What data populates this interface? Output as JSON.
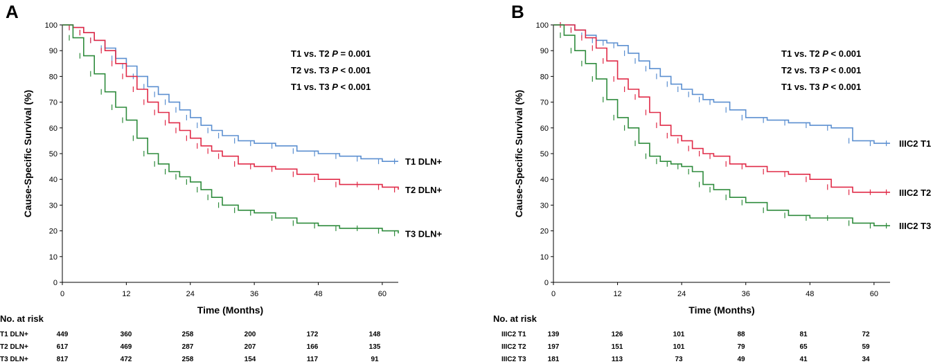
{
  "chart_data": [
    {
      "type": "line",
      "panel_label": "A",
      "xlabel": "Time (Months)",
      "ylabel": "Cause-Specific Survival (%)",
      "xlim": [
        0,
        63
      ],
      "ylim": [
        0,
        100
      ],
      "xticks": [
        0,
        12,
        24,
        36,
        48,
        60
      ],
      "yticks": [
        0,
        10,
        20,
        30,
        40,
        50,
        60,
        70,
        80,
        90,
        100
      ],
      "stats": [
        {
          "label": "T1 vs. T2",
          "p": "P",
          "value": "= 0.001"
        },
        {
          "label": "T2 vs. T3",
          "p": "P",
          "value": "< 0.001"
        },
        {
          "label": "T1 vs. T3",
          "p": "P",
          "value": "< 0.001"
        }
      ],
      "risk_title": "No. at risk",
      "risk_times": [
        0,
        12,
        24,
        36,
        48,
        60
      ],
      "series": [
        {
          "name": "T1 DLN+",
          "color": "#5b8fd0",
          "x": [
            0,
            2,
            4,
            6,
            8,
            10,
            12,
            14,
            16,
            18,
            20,
            22,
            24,
            26,
            28,
            30,
            33,
            36,
            40,
            44,
            48,
            52,
            56,
            60,
            63
          ],
          "y": [
            100,
            99,
            97,
            94,
            91,
            87,
            84,
            80,
            76,
            73,
            70,
            67,
            64,
            61,
            59,
            57,
            55,
            54,
            53,
            51,
            50,
            49,
            48,
            47,
            47
          ],
          "risk": [
            449,
            360,
            258,
            200,
            172,
            148
          ]
        },
        {
          "name": "T2 DLN+",
          "color": "#e02a47",
          "x": [
            0,
            2,
            4,
            6,
            8,
            10,
            12,
            14,
            16,
            18,
            20,
            22,
            24,
            26,
            28,
            30,
            33,
            36,
            40,
            44,
            48,
            52,
            56,
            60,
            63
          ],
          "y": [
            100,
            99,
            97,
            94,
            90,
            85,
            80,
            75,
            70,
            66,
            62,
            59,
            56,
            53,
            51,
            49,
            46,
            45,
            44,
            42,
            40,
            38,
            38,
            37,
            36
          ],
          "risk": [
            617,
            469,
            287,
            207,
            166,
            135
          ]
        },
        {
          "name": "T3 DLN+",
          "color": "#2e8b3c",
          "x": [
            0,
            2,
            4,
            6,
            8,
            10,
            12,
            14,
            16,
            18,
            20,
            22,
            24,
            26,
            28,
            30,
            33,
            36,
            40,
            44,
            48,
            52,
            56,
            60,
            63
          ],
          "y": [
            100,
            95,
            88,
            81,
            74,
            68,
            63,
            56,
            50,
            46,
            43,
            41,
            39,
            36,
            33,
            30,
            28,
            27,
            25,
            23,
            22,
            21,
            21,
            20,
            19
          ],
          "risk": [
            817,
            472,
            258,
            154,
            117,
            91
          ]
        }
      ]
    },
    {
      "type": "line",
      "panel_label": "B",
      "xlabel": "Time (Months)",
      "ylabel": "Cause-Specific Survival (%)",
      "xlim": [
        0,
        63
      ],
      "ylim": [
        0,
        100
      ],
      "xticks": [
        0,
        12,
        24,
        36,
        48,
        60
      ],
      "yticks": [
        0,
        10,
        20,
        30,
        40,
        50,
        60,
        70,
        80,
        90,
        100
      ],
      "stats": [
        {
          "label": "T1 vs. T2",
          "p": "P",
          "value": "< 0.001"
        },
        {
          "label": "T2 vs. T3",
          "p": "P",
          "value": "< 0.001"
        },
        {
          "label": "T1 vs. T3",
          "p": "P",
          "value": "< 0.001"
        }
      ],
      "risk_title": "No. at risk",
      "risk_times": [
        0,
        12,
        24,
        36,
        48,
        60
      ],
      "series": [
        {
          "name": "IIIC2 T1",
          "color": "#5b8fd0",
          "x": [
            0,
            2,
            4,
            6,
            8,
            10,
            12,
            14,
            16,
            18,
            20,
            22,
            24,
            26,
            28,
            30,
            33,
            36,
            40,
            44,
            48,
            52,
            56,
            60,
            63
          ],
          "y": [
            100,
            100,
            98,
            96,
            94,
            93,
            92,
            89,
            86,
            83,
            80,
            77,
            75,
            73,
            71,
            70,
            67,
            64,
            63,
            62,
            61,
            60,
            55,
            54,
            54
          ],
          "risk": [
            139,
            126,
            101,
            88,
            81,
            72
          ]
        },
        {
          "name": "IIIC2 T2",
          "color": "#e02a47",
          "x": [
            0,
            2,
            4,
            6,
            8,
            10,
            12,
            14,
            16,
            18,
            20,
            22,
            24,
            26,
            28,
            30,
            33,
            36,
            40,
            44,
            48,
            52,
            56,
            60,
            63
          ],
          "y": [
            100,
            100,
            98,
            95,
            91,
            86,
            79,
            75,
            72,
            66,
            61,
            57,
            55,
            52,
            50,
            49,
            46,
            45,
            43,
            42,
            40,
            37,
            35,
            35,
            35
          ],
          "risk": [
            197,
            151,
            101,
            79,
            65,
            59
          ]
        },
        {
          "name": "IIIC2 T3",
          "color": "#2e8b3c",
          "x": [
            0,
            2,
            4,
            6,
            8,
            10,
            12,
            14,
            16,
            18,
            20,
            22,
            24,
            26,
            28,
            30,
            33,
            36,
            40,
            44,
            48,
            52,
            56,
            60,
            63
          ],
          "y": [
            100,
            96,
            90,
            85,
            79,
            71,
            64,
            60,
            54,
            49,
            47,
            46,
            45,
            43,
            38,
            36,
            33,
            31,
            28,
            26,
            25,
            25,
            23,
            22,
            22
          ],
          "risk": [
            181,
            113,
            73,
            49,
            41,
            34
          ]
        }
      ]
    }
  ]
}
